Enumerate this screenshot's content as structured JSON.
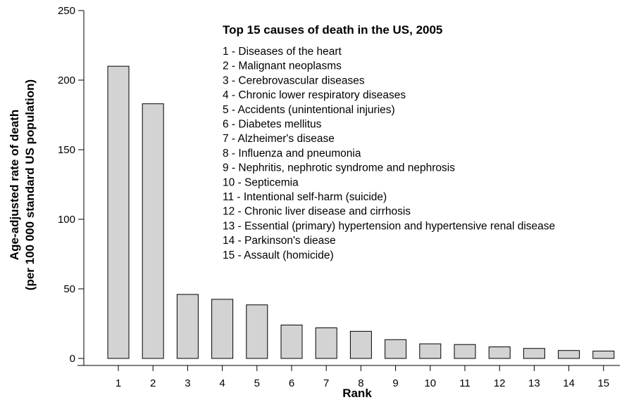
{
  "chart_data": {
    "type": "bar",
    "title": "Top 15 causes of death in the US, 2005",
    "xlabel": "Rank",
    "ylabel": [
      "Age-adjusted rate of death",
      "(per 100 000 standard US population)"
    ],
    "categories": [
      "1",
      "2",
      "3",
      "4",
      "5",
      "6",
      "7",
      "8",
      "9",
      "10",
      "11",
      "12",
      "13",
      "14",
      "15"
    ],
    "values": [
      210,
      183,
      46,
      42.5,
      38.5,
      24,
      22,
      19.5,
      13.5,
      10.5,
      10,
      8.3,
      7.2,
      5.7,
      5.3
    ],
    "ylim": [
      0,
      250
    ],
    "yticks": [
      "0",
      "50",
      "100",
      "150",
      "200",
      "250"
    ],
    "grid": false,
    "legend": [
      "1 - Diseases of the heart",
      "2 - Malignant neoplasms",
      "3 - Cerebrovascular diseases",
      "4 - Chronic lower respiratory diseases",
      "5 - Accidents (unintentional injuries)",
      "6 - Diabetes mellitus",
      "7 - Alzheimer's disease",
      "8 - Influenza and pneumonia",
      "9 - Nephritis, nephrotic syndrome and nephrosis",
      "10 - Septicemia",
      "11 - Intentional self-harm (suicide)",
      "12 - Chronic liver disease and cirrhosis",
      "13 - Essential (primary) hypertension and hypertensive renal disease",
      "14 - Parkinson's diease",
      "15 - Assault (homicide)"
    ],
    "legend_placement": "top-right",
    "colors": {
      "bar_fill": "#d3d3d3",
      "bar_stroke": "#000000",
      "axis": "#000000"
    }
  }
}
